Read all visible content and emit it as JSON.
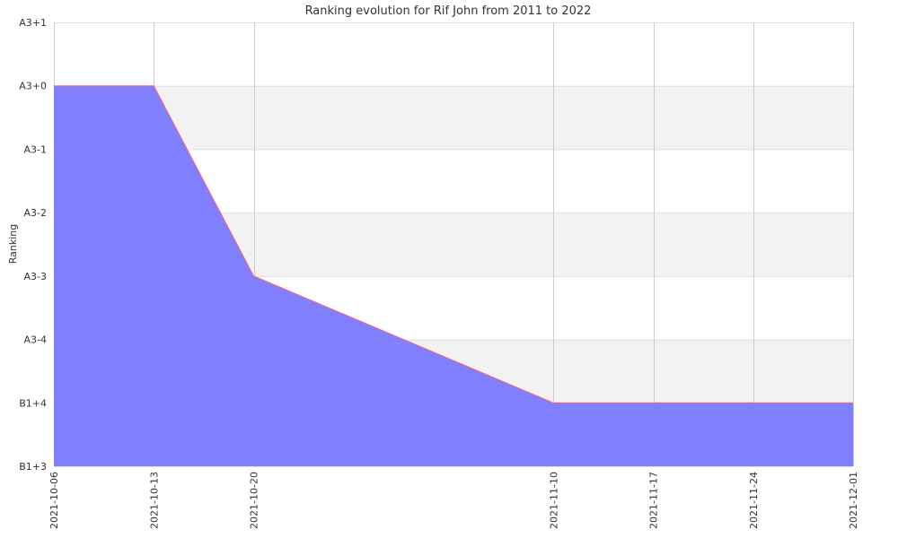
{
  "chart_data": {
    "type": "area",
    "title": "Ranking evolution for Rif John from 2011 to 2022",
    "xlabel": "",
    "ylabel": "Ranking",
    "x": [
      "2021-10-06",
      "2021-10-13",
      "2021-10-20",
      "2021-11-10",
      "2021-11-17",
      "2021-11-24",
      "2021-12-01"
    ],
    "x_tick_labels": [
      "2021-10-06",
      "2021-10-13",
      "2021-10-20",
      "2021-11-10",
      "2021-11-17",
      "2021-11-24",
      "2021-12-01"
    ],
    "y_tick_labels": [
      "B1+3",
      "B1+4",
      "A3-4",
      "A3-3",
      "A3-2",
      "A3-1",
      "A3+0",
      "A3+1"
    ],
    "series": [
      {
        "values": [
          "A3+0",
          "A3+0",
          "A3-3",
          "B1+4",
          "B1+4",
          "B1+4",
          "B1+4"
        ]
      }
    ],
    "alternating_bands": true,
    "vertical_grid": true,
    "colors": {
      "fill": "#8080ff",
      "line": "#ff6666",
      "band": "#f2f2f2",
      "grid": "#cccccc"
    }
  }
}
